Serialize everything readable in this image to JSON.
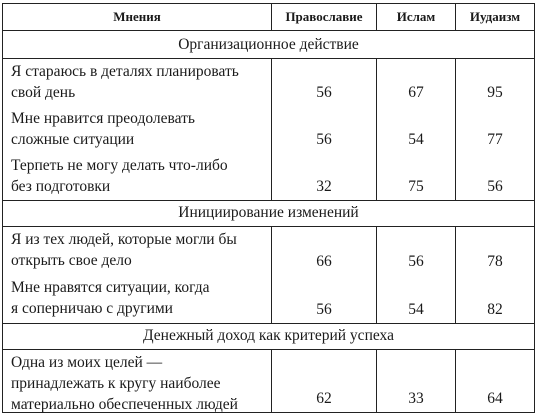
{
  "columns": {
    "opinions": "Мнения",
    "orthodoxy": "Православие",
    "islam": "Ислам",
    "judaism": "Иудаизм"
  },
  "sections": [
    {
      "title": "Организационное действие",
      "rows": [
        {
          "label": [
            "Я стараюсь в деталях планировать",
            "свой день"
          ],
          "values": [
            "56",
            "67",
            "95"
          ]
        },
        {
          "label": [
            "Мне нравится преодолевать",
            "сложные ситуации"
          ],
          "values": [
            "56",
            "54",
            "77"
          ]
        },
        {
          "label": [
            "Терпеть не могу делать что-либо",
            "без подготовки"
          ],
          "values": [
            "32",
            "75",
            "56"
          ]
        }
      ]
    },
    {
      "title": "Инициирование изменений",
      "rows": [
        {
          "label": [
            "Я из тех людей, которые могли бы",
            "открыть свое дело"
          ],
          "values": [
            "66",
            "56",
            "78"
          ]
        },
        {
          "label": [
            "Мне нравятся ситуации, когда",
            "я соперничаю с другими"
          ],
          "values": [
            "56",
            "54",
            "82"
          ]
        }
      ]
    },
    {
      "title": "Денежный доход как критерий успеха",
      "rows": [
        {
          "label": [
            "Одна из моих целей —",
            "принадлежать к кругу наиболее",
            "материально обеспеченных людей"
          ],
          "values": [
            "62",
            "33",
            "64"
          ]
        }
      ]
    }
  ]
}
